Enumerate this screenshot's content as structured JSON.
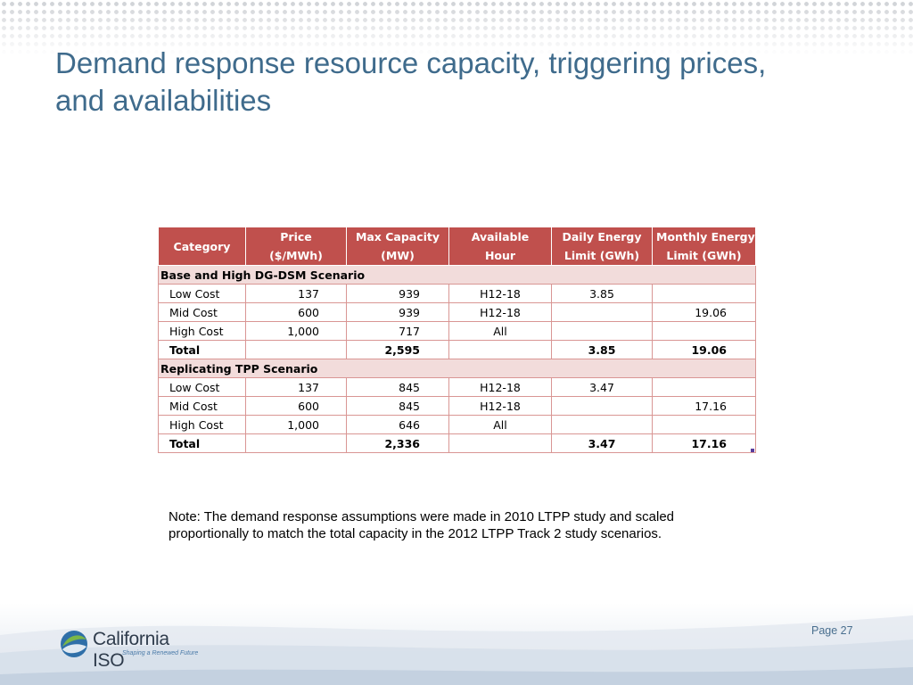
{
  "slide": {
    "title_line1": "Demand response resource capacity, triggering prices,",
    "title_line2": "and availabilities",
    "note_line1": "Note: The demand response assumptions were made in 2010 LTPP study and scaled",
    "note_line2": "proportionally to match the total capacity in the 2012 LTPP Track 2 study scenarios.",
    "page_label": "Page 27"
  },
  "logo": {
    "name": "California ISO",
    "tagline": "Shaping a Renewed Future",
    "colors": {
      "green": "#7ab648",
      "blue": "#2f6fa8",
      "text": "#2f3c4c"
    }
  },
  "table": {
    "headers": [
      {
        "line1": "Category",
        "line2": ""
      },
      {
        "line1": "Price",
        "line2": "($/MWh)"
      },
      {
        "line1": "Max Capacity",
        "line2": "(MW)"
      },
      {
        "line1": "Available",
        "line2": "Hour"
      },
      {
        "line1": "Daily Energy",
        "line2": "Limit (GWh)"
      },
      {
        "line1": "Monthly Energy",
        "line2": "Limit (GWh)"
      }
    ],
    "sections": [
      {
        "name": "Base and High DG-DSM Scenario",
        "rows": [
          {
            "category": "Low Cost",
            "price": "137",
            "capacity": "939",
            "hour": "H12-18",
            "daily": "3.85",
            "monthly": ""
          },
          {
            "category": "Mid Cost",
            "price": "600",
            "capacity": "939",
            "hour": "H12-18",
            "daily": "",
            "monthly": "19.06"
          },
          {
            "category": "High Cost",
            "price": "1,000",
            "capacity": "717",
            "hour": "All",
            "daily": "",
            "monthly": ""
          }
        ],
        "total": {
          "category": "Total",
          "price": "",
          "capacity": "2,595",
          "hour": "",
          "daily": "3.85",
          "monthly": "19.06"
        }
      },
      {
        "name": "Replicating TPP Scenario",
        "rows": [
          {
            "category": "Low Cost",
            "price": "137",
            "capacity": "845",
            "hour": "H12-18",
            "daily": "3.47",
            "monthly": ""
          },
          {
            "category": "Mid Cost",
            "price": "600",
            "capacity": "845",
            "hour": "H12-18",
            "daily": "",
            "monthly": "17.16"
          },
          {
            "category": "High Cost",
            "price": "1,000",
            "capacity": "646",
            "hour": "All",
            "daily": "",
            "monthly": ""
          }
        ],
        "total": {
          "category": "Total",
          "price": "",
          "capacity": "2,336",
          "hour": "",
          "daily": "3.47",
          "monthly": "17.16"
        }
      }
    ],
    "colors": {
      "header_bg": "#c0504d",
      "section_bg": "#f2dcdb",
      "border": "#d99694"
    }
  }
}
